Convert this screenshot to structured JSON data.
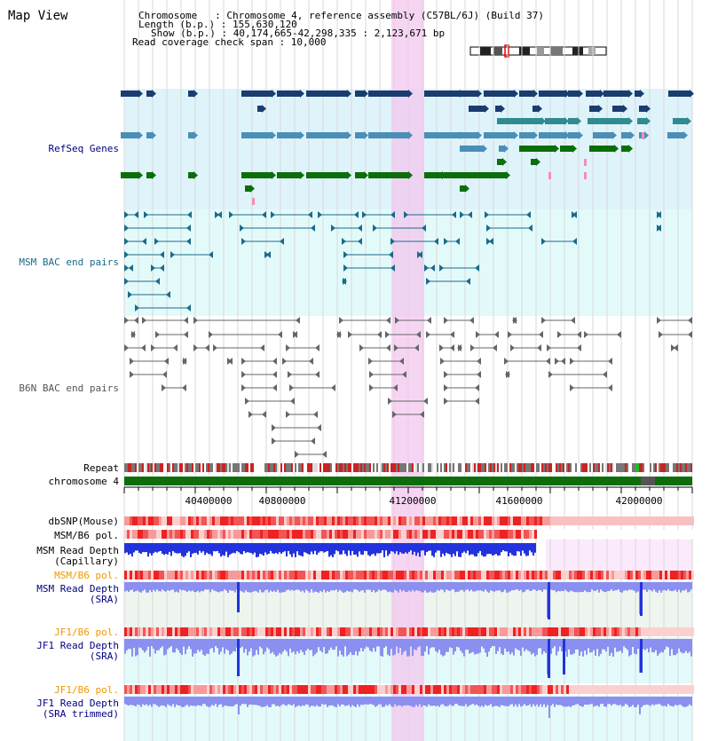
{
  "header": {
    "title": "Map View",
    "info_lines": [
      "Chromosome   : Chromosome 4, reference assembly (C57BL/6J) (Build 37)",
      "Length (b.p.) : 155,630,120",
      "Show (b.p.) : 40,174,665-42,298,335 : 2,123,671 bp",
      "Read coverage check span : 10,000"
    ]
  },
  "tracks": {
    "refseq": "RefSeq Genes",
    "msm_bac": "MSM BAC end pairs",
    "b6n_bac": "B6N BAC end pairs",
    "repeat": "Repeat",
    "chromosome": "chromosome 4",
    "dbsnp": "dbSNP(Mouse)",
    "msm_pol": "MSM/B6 pol.",
    "msm_depth_cap_1": "MSM Read Depth",
    "msm_depth_cap_2": "(Capillary)",
    "msm_pol2": "MSM/B6 pol.",
    "msm_depth_sra_1": "MSM Read Depth",
    "msm_depth_sra_2": "(SRA)",
    "jf1_pol": "JF1/B6 pol.",
    "jf1_depth_sra_1": "JF1 Read Depth",
    "jf1_depth_sra_2": "(SRA)",
    "jf1_pol2": "JF1/B6 pol.",
    "jf1_depth_trim_1": "JF1 Read Depth",
    "jf1_depth_trim_2": "(SRA trimmed)"
  },
  "axis": {
    "ticks": [
      "40400000",
      "40800000",
      "41200000",
      "41600000",
      "42000000"
    ]
  },
  "colors": {
    "refseq_dark": "#1a3c6e",
    "refseq_mid": "#4a8fb8",
    "refseq_green": "#0b6e0b",
    "msm_line": "#1a6b8a",
    "b6n_line": "#666666",
    "highlight": "#f3c7ef",
    "panel_blue": "#dff3fb",
    "panel_cyan": "#e3fafb",
    "depth_blue": "#2233dd",
    "depth_lav": "#8a8ff0",
    "pol_red": "#ee3333",
    "label_navy": "#000080",
    "label_teal": "#1a6b8a",
    "label_orange": "#ee9900"
  }
}
